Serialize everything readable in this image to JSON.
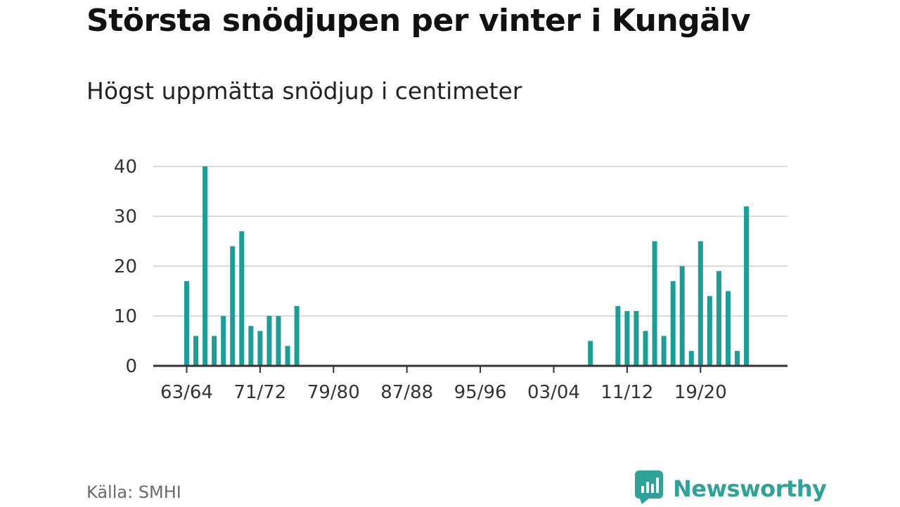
{
  "header": {
    "title": "Största snödjupen per vinter i Kungälv",
    "subtitle": "Högst uppmätta snödjup i centimeter"
  },
  "footer": {
    "source": "Källa: SMHI",
    "brand": "Newsworthy",
    "brand_icon": "newsworthy-logo-icon"
  },
  "colors": {
    "bar": "#1a9e96",
    "brand": "#2ea39a",
    "grid": "#d9d9d9",
    "axis": "#333333"
  },
  "chart_data": {
    "type": "bar",
    "x_tick_labels": [
      "63/64",
      "71/72",
      "79/80",
      "87/88",
      "95/96",
      "03/04",
      "11/12",
      "19/20"
    ],
    "categories": [
      "63/64",
      "64/65",
      "65/66",
      "66/67",
      "67/68",
      "68/69",
      "69/70",
      "70/71",
      "71/72",
      "72/73",
      "73/74",
      "74/75",
      "75/76",
      "76/77",
      "77/78",
      "78/79",
      "79/80",
      "80/81",
      "81/82",
      "82/83",
      "83/84",
      "84/85",
      "85/86",
      "86/87",
      "87/88",
      "88/89",
      "89/90",
      "90/91",
      "91/92",
      "92/93",
      "93/94",
      "94/95",
      "95/96",
      "96/97",
      "97/98",
      "98/99",
      "99/00",
      "00/01",
      "01/02",
      "02/03",
      "03/04",
      "04/05",
      "05/06",
      "06/07",
      "07/08",
      "08/09",
      "09/10",
      "10/11",
      "11/12",
      "12/13",
      "13/14",
      "14/15",
      "15/16",
      "16/17",
      "17/18",
      "18/19",
      "19/20",
      "20/21",
      "21/22",
      "22/23",
      "23/24",
      "24/25"
    ],
    "values": [
      17,
      6,
      40,
      6,
      10,
      24,
      27,
      8,
      7,
      10,
      10,
      4,
      12,
      null,
      null,
      null,
      null,
      null,
      null,
      null,
      null,
      null,
      null,
      null,
      null,
      null,
      null,
      null,
      null,
      null,
      null,
      null,
      null,
      null,
      null,
      null,
      null,
      null,
      null,
      null,
      null,
      null,
      null,
      null,
      5,
      null,
      null,
      12,
      11,
      11,
      7,
      25,
      6,
      17,
      20,
      3,
      25,
      14,
      19,
      15,
      3,
      32
    ],
    "y_ticks": [
      0,
      10,
      20,
      30,
      40
    ],
    "ylim": [
      0,
      40
    ],
    "grid": true
  }
}
